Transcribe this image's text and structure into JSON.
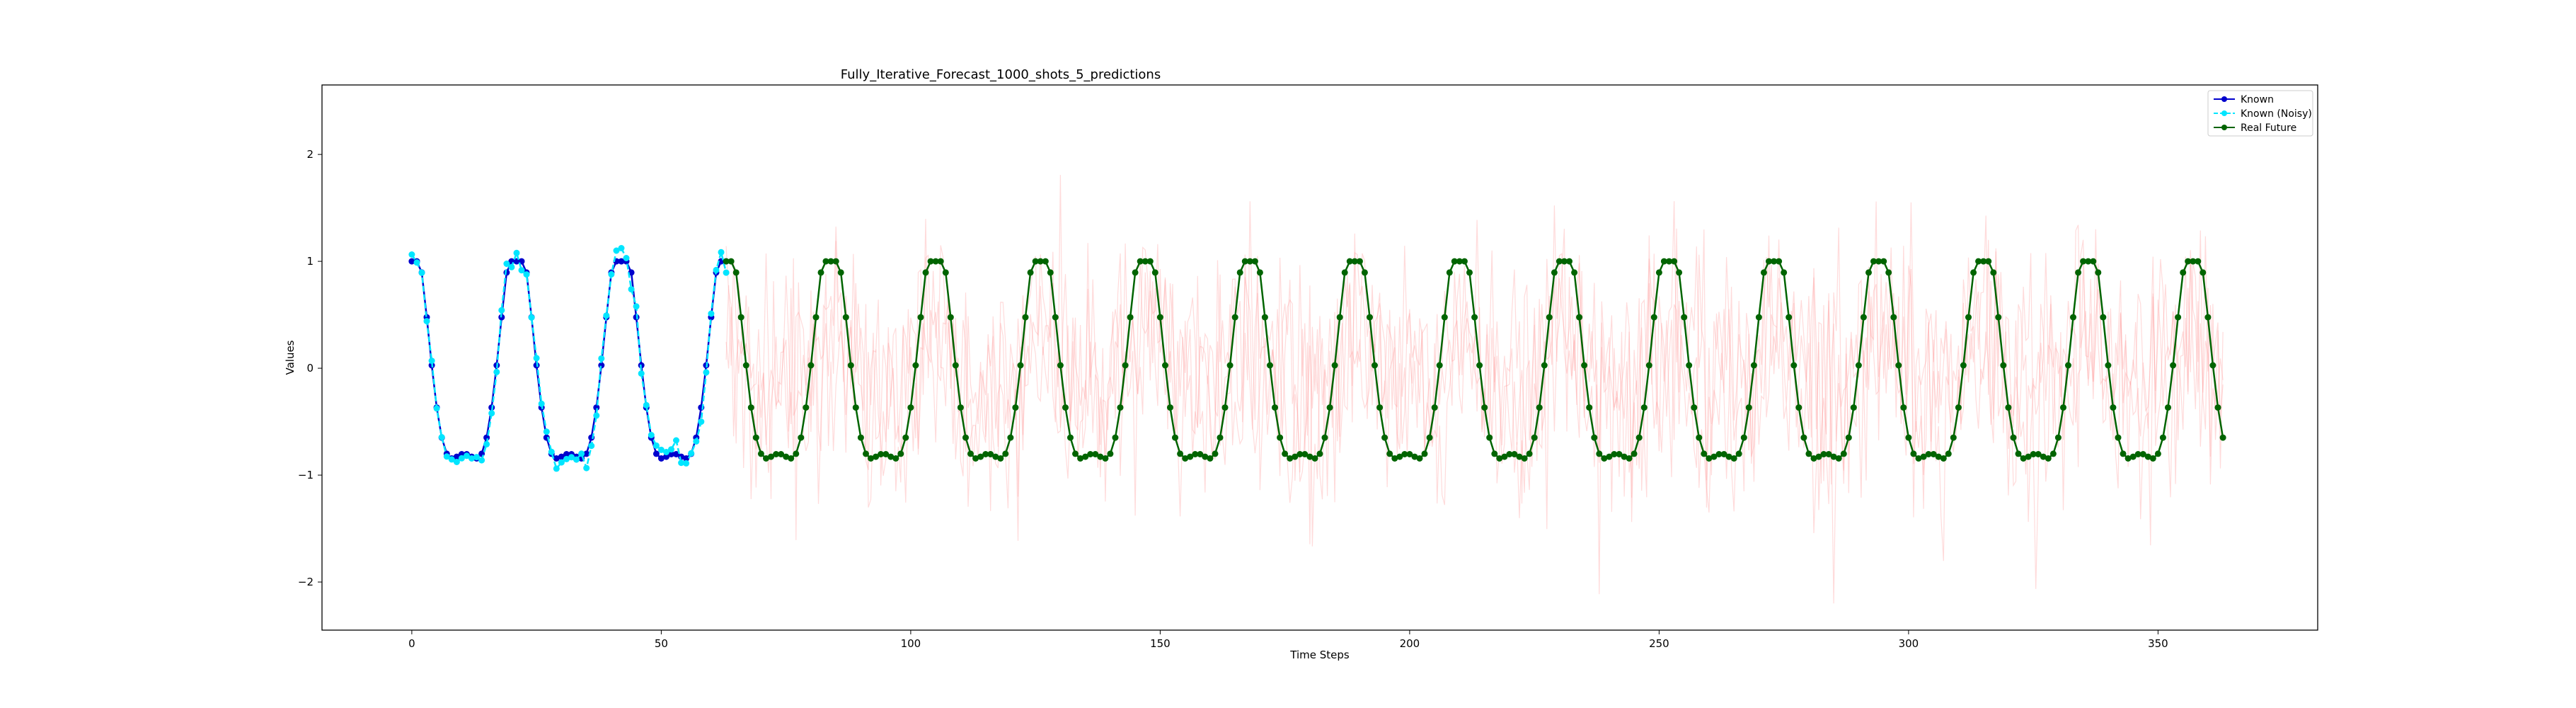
{
  "chart_data": {
    "type": "line",
    "title": "Fully_Iterative_Forecast_1000_shots_5_predictions",
    "xlabel": "Time Steps",
    "ylabel": "Values",
    "xlim": [
      -18,
      382
    ],
    "ylim": [
      -2.45,
      2.65
    ],
    "x_ticks": [
      0,
      50,
      100,
      150,
      200,
      250,
      300,
      350
    ],
    "y_ticks": [
      -2,
      -1,
      0,
      1,
      2
    ],
    "grid": false,
    "legend_position": "upper right",
    "signal_period": 21,
    "known_range": [
      0,
      63
    ],
    "future_range": [
      63,
      363
    ],
    "series": [
      {
        "name": "Known",
        "color": "#0000cd",
        "style": "solid line, circle markers"
      },
      {
        "name": "Known (Noisy)",
        "color": "#00e5ff",
        "style": "dashed line, circle markers"
      },
      {
        "name": "Real Future",
        "color": "#006400",
        "style": "solid line, circle markers"
      },
      {
        "color": "#ff9999",
        "style": "faint noisy prediction lines",
        "x_range": [
          63,
          363
        ],
        "y_range": [
          -2.2,
          2.45
        ]
      }
    ]
  }
}
